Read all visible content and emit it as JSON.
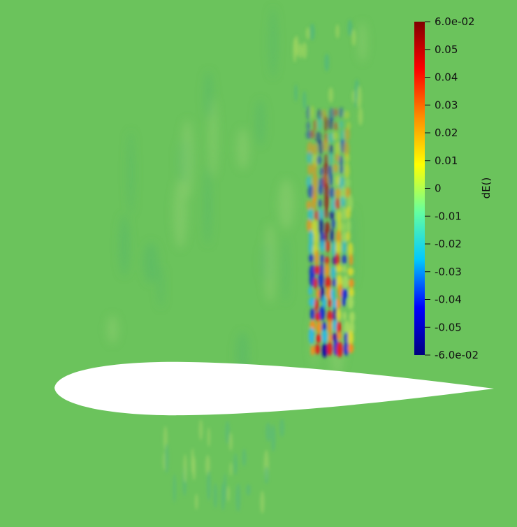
{
  "scene": {
    "background_color": "#6bc35c",
    "airfoil_color": "#ffffff",
    "field_name": "dE()"
  },
  "colorbar": {
    "title": "dE()",
    "range": [
      -0.06,
      0.06
    ],
    "colormap": [
      "#00007f",
      "#0000ff",
      "#00c8ff",
      "#64ffa0",
      "#ffff00",
      "#ff8c00",
      "#ff0000",
      "#800000"
    ],
    "ticks": [
      {
        "value": 0.06,
        "label": "6.0e-02"
      },
      {
        "value": 0.05,
        "label": "0.05"
      },
      {
        "value": 0.04,
        "label": "0.04"
      },
      {
        "value": 0.03,
        "label": "0.03"
      },
      {
        "value": 0.02,
        "label": "0.02"
      },
      {
        "value": 0.01,
        "label": "0.01"
      },
      {
        "value": 0.0,
        "label": "0"
      },
      {
        "value": -0.01,
        "label": "-0.01"
      },
      {
        "value": -0.02,
        "label": "-0.02"
      },
      {
        "value": -0.03,
        "label": "-0.03"
      },
      {
        "value": -0.04,
        "label": "-0.04"
      },
      {
        "value": -0.05,
        "label": "-0.05"
      },
      {
        "value": -0.06,
        "label": "-6.0e-02"
      }
    ]
  }
}
